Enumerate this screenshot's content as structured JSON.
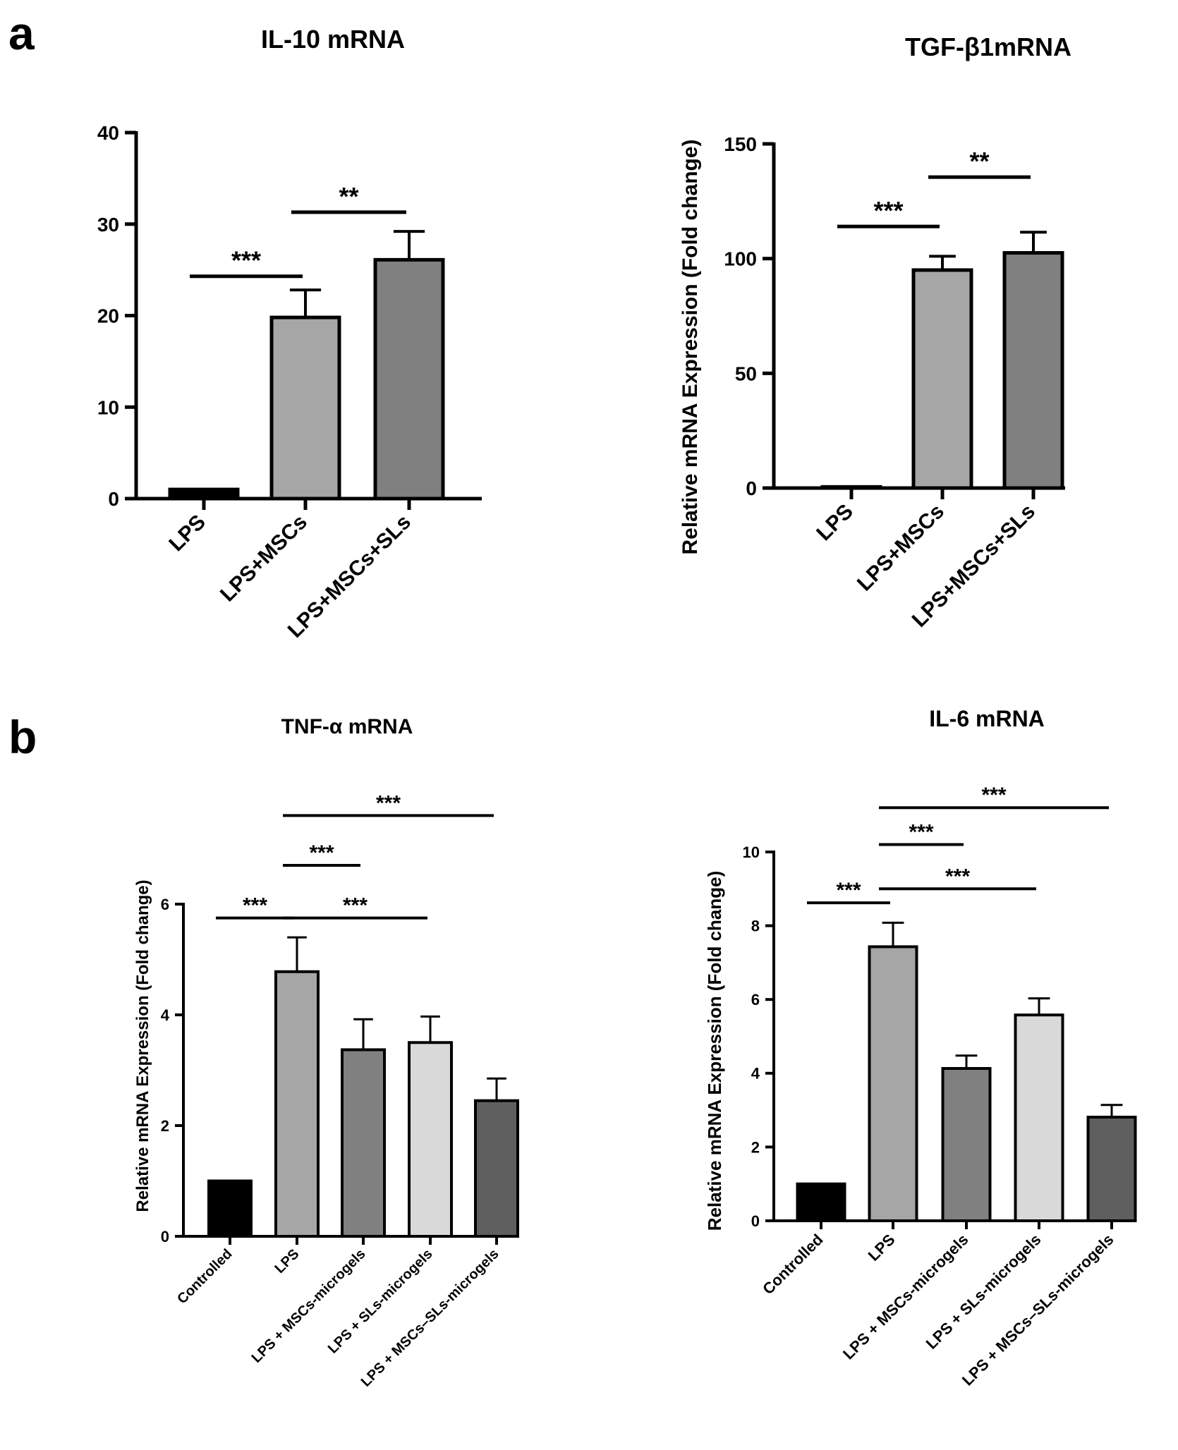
{
  "panels": [
    {
      "letter": "a"
    },
    {
      "letter": "b"
    }
  ],
  "chart_data": [
    {
      "type": "bar",
      "panel": "a",
      "title": "IL-10 mRNA",
      "ylabel": "",
      "ylim": [
        0,
        40
      ],
      "yticks": [
        "0",
        "10",
        "20",
        "30",
        "40"
      ],
      "categories": [
        "LPS",
        "LPS+MSCs",
        "LPS+MSCs+SLs"
      ],
      "values": [
        1,
        19.8,
        26.1
      ],
      "errors": [
        0,
        3.0,
        3.1
      ],
      "colors": [
        "#000000",
        "#a6a6a6",
        "#808080"
      ],
      "significance": [
        {
          "from": 0,
          "to": 1,
          "label": "***",
          "y": 24.3
        },
        {
          "from": 1,
          "to": 2,
          "label": "**",
          "y": 31.3
        }
      ]
    },
    {
      "type": "bar",
      "panel": "a",
      "title": "TGF-β1mRNA",
      "ylabel": "Relative mRNA Expression (Fold change)",
      "ylim": [
        0,
        150
      ],
      "yticks": [
        "0",
        "50",
        "100",
        "150"
      ],
      "categories": [
        "LPS",
        "LPS+MSCs",
        "LPS+MSCs+SLs"
      ],
      "values": [
        0.5,
        95,
        102.5
      ],
      "errors": [
        0,
        6,
        9
      ],
      "colors": [
        "#000000",
        "#a6a6a6",
        "#808080"
      ],
      "significance": [
        {
          "from": 0,
          "to": 1,
          "label": "***",
          "y": 114
        },
        {
          "from": 1,
          "to": 2,
          "label": "**",
          "y": 135.5
        }
      ]
    },
    {
      "type": "bar",
      "panel": "b",
      "title": "TNF-α mRNA",
      "ylabel": "Relative mRNA Expression (Fold change)",
      "ylim": [
        0,
        6
      ],
      "yticks": [
        "0",
        "2",
        "4",
        "6"
      ],
      "categories": [
        "Controlled",
        "LPS",
        "LPS + MSCs-microgels",
        "LPS + SLs-microgels",
        "LPS + MSCs–SLs-microgels"
      ],
      "values": [
        1,
        4.78,
        3.37,
        3.5,
        2.45
      ],
      "errors": [
        0,
        0.62,
        0.55,
        0.47,
        0.4
      ],
      "colors": [
        "#000000",
        "#a6a6a6",
        "#808080",
        "#d9d9d9",
        "#5f5f5f"
      ],
      "significance": [
        {
          "from": 0,
          "to": 1,
          "label": "***",
          "y": 5.75
        },
        {
          "from": 1,
          "to": 3,
          "label": "***",
          "y": 5.75
        },
        {
          "from": 1,
          "to": 2,
          "label": "***",
          "y": 6.7
        },
        {
          "from": 1,
          "to": 4,
          "label": "***",
          "y": 7.6
        }
      ]
    },
    {
      "type": "bar",
      "panel": "b",
      "title": "IL-6 mRNA",
      "ylabel": "Relative mRNA Expression (Fold change)",
      "ylim": [
        0,
        10
      ],
      "yticks": [
        "0",
        "2",
        "4",
        "6",
        "8",
        "10"
      ],
      "categories": [
        "Controlled",
        "LPS",
        "LPS + MSCs-microgels",
        "LPS + SLs-microgels",
        "LPS + MSCs–SLs-microgels"
      ],
      "values": [
        1,
        7.43,
        4.13,
        5.58,
        2.81
      ],
      "errors": [
        0,
        0.65,
        0.35,
        0.45,
        0.33
      ],
      "colors": [
        "#000000",
        "#a6a6a6",
        "#808080",
        "#d9d9d9",
        "#5f5f5f"
      ],
      "significance": [
        {
          "from": 0,
          "to": 1,
          "label": "***",
          "y": 8.62
        },
        {
          "from": 1,
          "to": 3,
          "label": "***",
          "y": 9.0
        },
        {
          "from": 1,
          "to": 2,
          "label": "***",
          "y": 10.2
        },
        {
          "from": 1,
          "to": 4,
          "label": "***",
          "y": 11.2
        }
      ]
    }
  ]
}
